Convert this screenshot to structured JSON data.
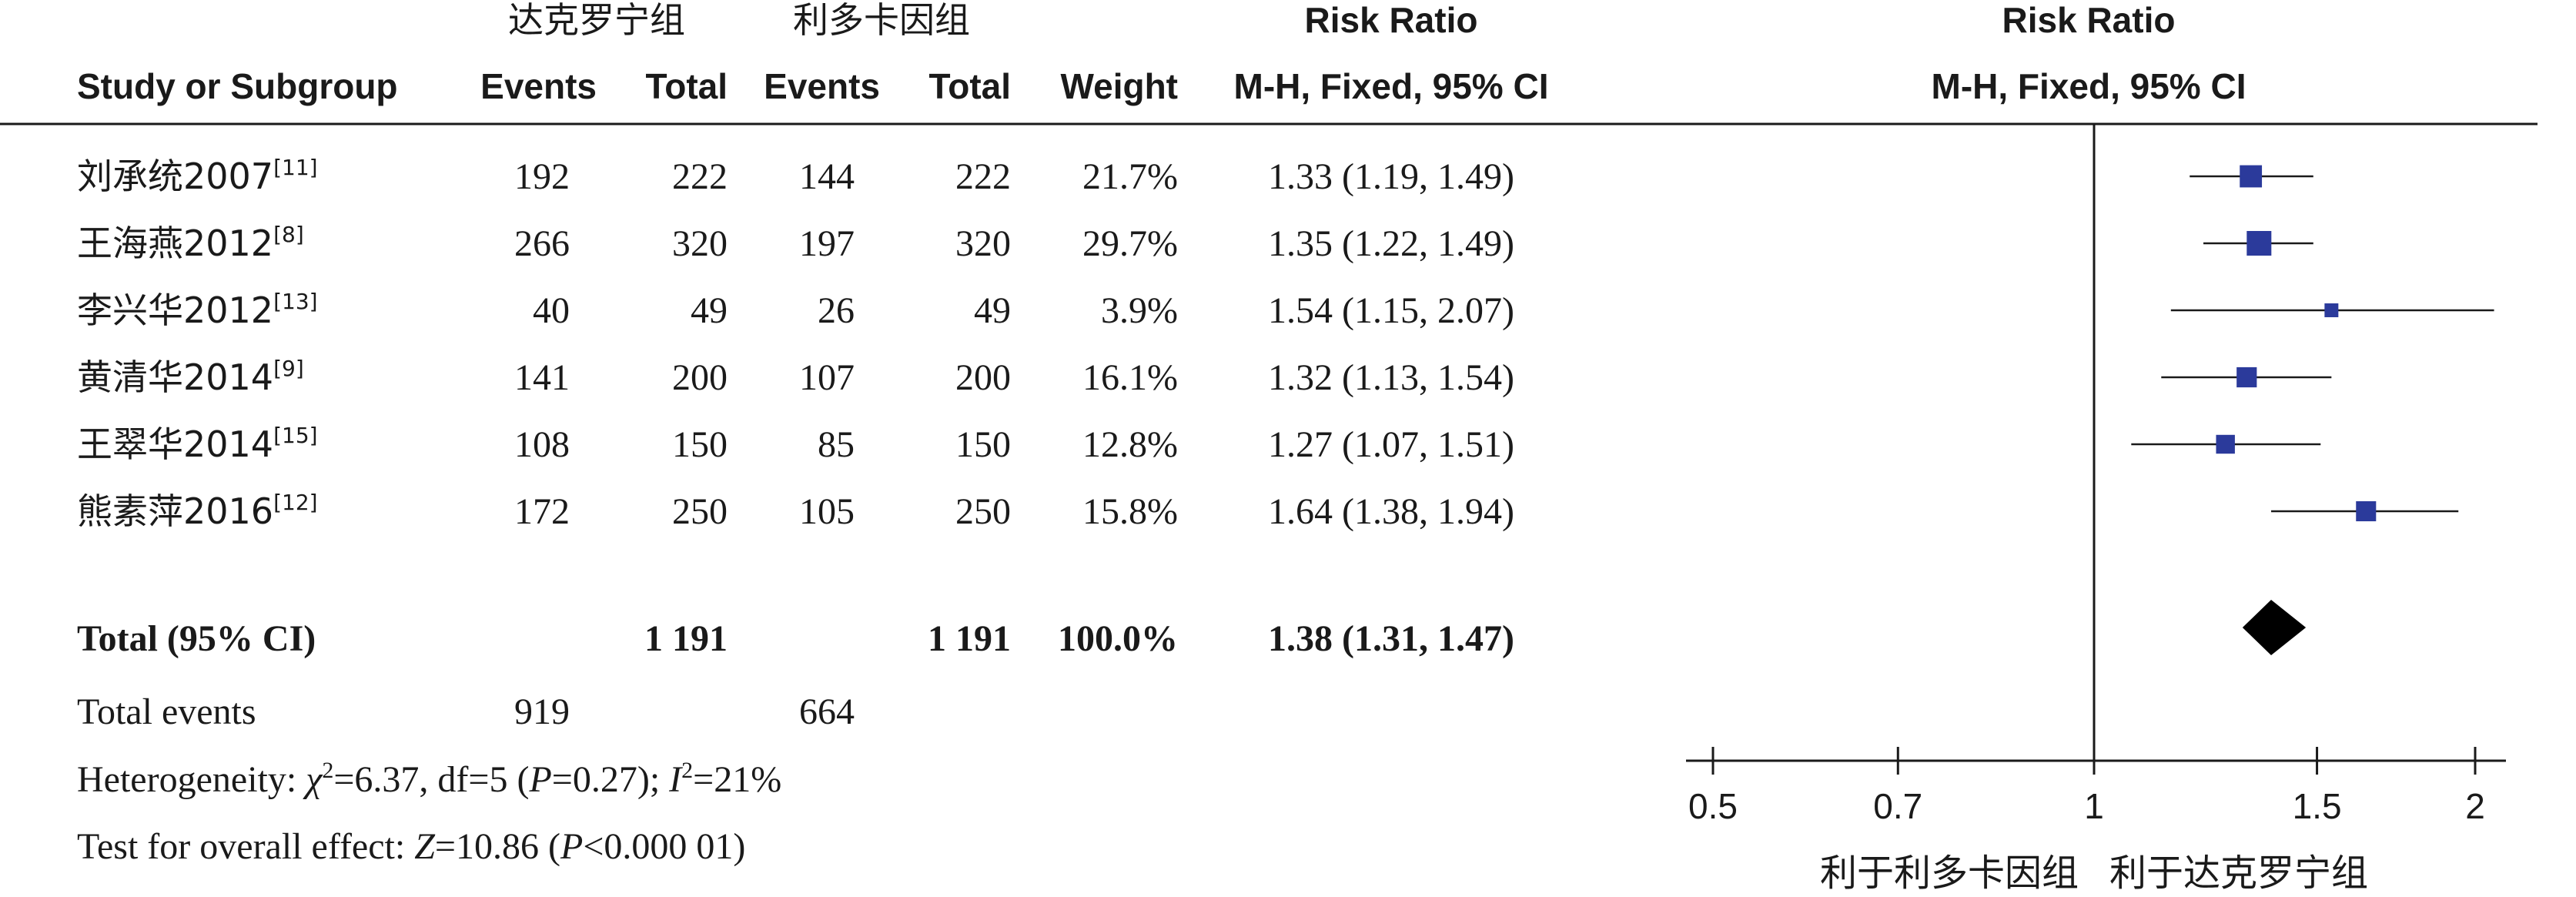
{
  "header": {
    "group1": "达克罗宁组",
    "group2": "利多卡因组",
    "risk_ratio": "Risk Ratio",
    "risk_ratio_plot": "Risk Ratio",
    "col_study": "Study or Subgroup",
    "col_events1": "Events",
    "col_total1": "Total",
    "col_events2": "Events",
    "col_total2": "Total",
    "col_weight": "Weight",
    "col_mh": "M-H, Fixed, 95% CI",
    "col_mh_plot": "M-H, Fixed, 95% CI"
  },
  "rows": [
    {
      "name": "刘承统2007",
      "ref": "[11]",
      "e1": "192",
      "t1": "222",
      "e2": "144",
      "t2": "222",
      "w": "21.7%",
      "ci": "1.33 (1.19, 1.49)"
    },
    {
      "name": "王海燕2012",
      "ref": "[8]",
      "e1": "266",
      "t1": "320",
      "e2": "197",
      "t2": "320",
      "w": "29.7%",
      "ci": "1.35 (1.22, 1.49)"
    },
    {
      "name": "李兴华2012",
      "ref": "[13]",
      "e1": "40",
      "t1": "49",
      "e2": "26",
      "t2": "49",
      "w": "3.9%",
      "ci": "1.54 (1.15, 2.07)"
    },
    {
      "name": "黄清华2014",
      "ref": "[9]",
      "e1": "141",
      "t1": "200",
      "e2": "107",
      "t2": "200",
      "w": "16.1%",
      "ci": "1.32 (1.13, 1.54)"
    },
    {
      "name": "王翠华2014",
      "ref": "[15]",
      "e1": "108",
      "t1": "150",
      "e2": "85",
      "t2": "150",
      "w": "12.8%",
      "ci": "1.27 (1.07, 1.51)"
    },
    {
      "name": "熊素萍2016",
      "ref": "[12]",
      "e1": "172",
      "t1": "250",
      "e2": "105",
      "t2": "250",
      "w": "15.8%",
      "ci": "1.64 (1.38, 1.94)"
    }
  ],
  "total": {
    "label": "Total (95% CI)",
    "t1": "1 191",
    "t2": "1 191",
    "w": "100.0%",
    "ci": "1.38 (1.31, 1.47)"
  },
  "total_events": {
    "label": "Total events",
    "e1": "919",
    "e2": "664"
  },
  "heterogeneity": {
    "prefix": "Heterogeneity: ",
    "chi": "χ",
    "chi_val": "=6.37, df=5 (",
    "p": "P",
    "p_val": "=0.27); ",
    "i": "I",
    "i_val": "=21%",
    "sup": "2"
  },
  "overall": {
    "prefix": "Test for overall effect: ",
    "z": "Z",
    "z_val": "=10.86 (",
    "p": "P",
    "p_val": "<0.000 01)"
  },
  "axis": {
    "favours_left": "利于利多卡因组",
    "favours_right": "利于达克罗宁组"
  },
  "chart_data": {
    "type": "forest",
    "scale": "log",
    "xlim": [
      0.5,
      2
    ],
    "ticks": [
      {
        "value": 0.5,
        "label": "0.5"
      },
      {
        "value": 0.7,
        "label": "0.7"
      },
      {
        "value": 1,
        "label": "1"
      },
      {
        "value": 1.5,
        "label": "1.5"
      },
      {
        "value": 2,
        "label": "2"
      }
    ],
    "reference_line": 1,
    "studies": [
      {
        "rr": 1.33,
        "lo": 1.19,
        "hi": 1.49,
        "weight": 21.7
      },
      {
        "rr": 1.35,
        "lo": 1.22,
        "hi": 1.49,
        "weight": 29.7
      },
      {
        "rr": 1.54,
        "lo": 1.15,
        "hi": 2.07,
        "weight": 3.9
      },
      {
        "rr": 1.32,
        "lo": 1.13,
        "hi": 1.54,
        "weight": 16.1
      },
      {
        "rr": 1.27,
        "lo": 1.07,
        "hi": 1.51,
        "weight": 12.8
      },
      {
        "rr": 1.64,
        "lo": 1.38,
        "hi": 1.94,
        "weight": 15.8
      }
    ],
    "pooled": {
      "rr": 1.38,
      "lo": 1.31,
      "hi": 1.47
    },
    "marker_color": "#2b3a9b"
  }
}
